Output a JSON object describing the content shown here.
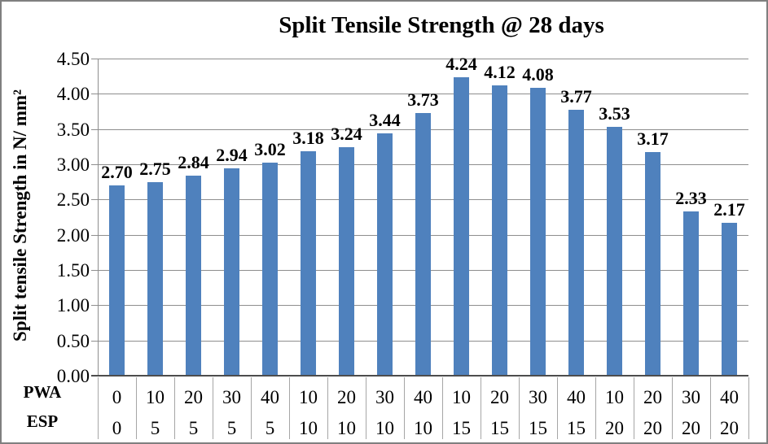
{
  "chart_data": {
    "type": "bar",
    "title": "Split Tensile Strength @ 28 days",
    "ylabel": "Split tensile Strength in N/ mm²",
    "ylim": [
      0,
      4.5
    ],
    "ytick_labels": [
      "4.50",
      "4.00",
      "3.50",
      "3.00",
      "2.50",
      "2.00",
      "1.50",
      "1.00",
      "0.50",
      "0.00"
    ],
    "grid": true,
    "legend_position": "none",
    "bar_color": "#4F81BD",
    "values": [
      2.7,
      2.75,
      2.84,
      2.94,
      3.02,
      3.18,
      3.24,
      3.44,
      3.73,
      4.24,
      4.12,
      4.08,
      3.77,
      3.53,
      3.17,
      2.33,
      2.17
    ],
    "data_labels": [
      "2.70",
      "2.75",
      "2.84",
      "2.94",
      "3.02",
      "3.18",
      "3.24",
      "3.44",
      "3.73",
      "4.24",
      "4.12",
      "4.08",
      "3.77",
      "3.53",
      "3.17",
      "2.33",
      "2.17"
    ],
    "x_axis_rows": [
      {
        "label": "PWA",
        "values": [
          "0",
          "10",
          "20",
          "30",
          "40",
          "10",
          "20",
          "30",
          "40",
          "10",
          "20",
          "30",
          "40",
          "10",
          "20",
          "30",
          "40"
        ]
      },
      {
        "label": "ESP",
        "values": [
          "0",
          "5",
          "5",
          "5",
          "5",
          "10",
          "10",
          "10",
          "10",
          "15",
          "15",
          "15",
          "15",
          "20",
          "20",
          "20",
          "20"
        ]
      }
    ]
  }
}
